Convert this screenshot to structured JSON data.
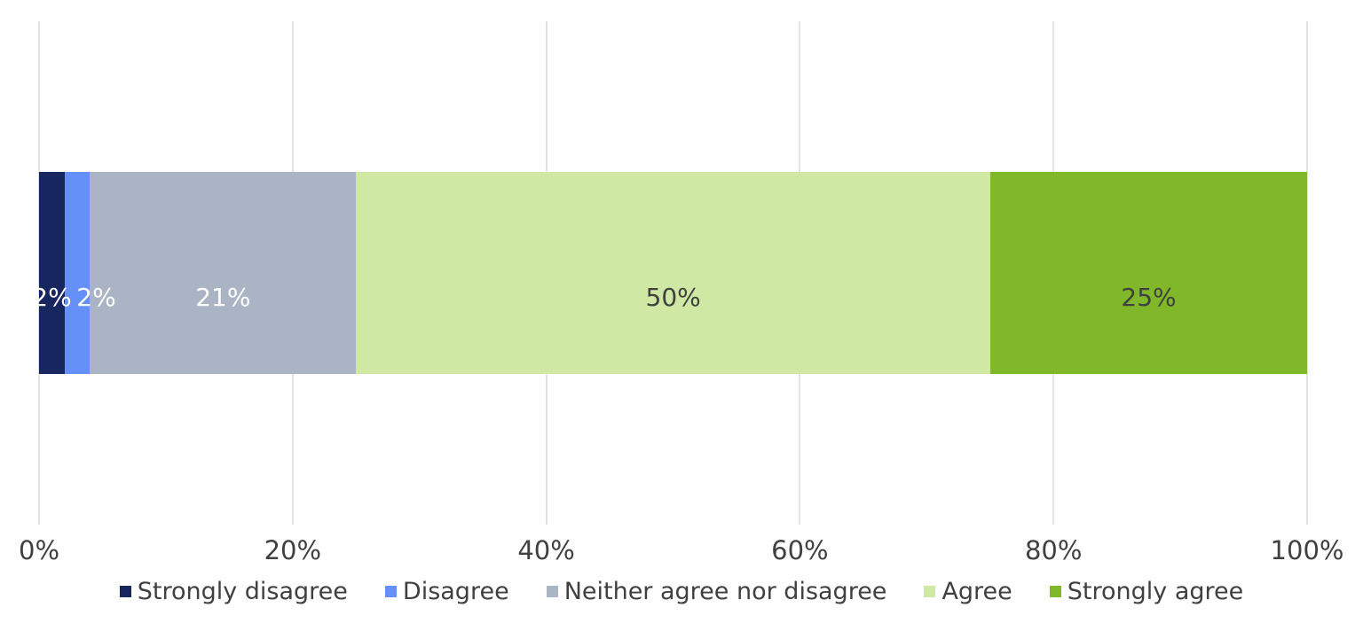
{
  "chart_data": {
    "type": "bar",
    "orientation": "horizontal",
    "stacked": true,
    "title": "",
    "series": [
      {
        "name": "Strongly disagree",
        "value": 2,
        "label": "2%",
        "color": "#17265e",
        "label_color": "#ffffff"
      },
      {
        "name": "Disagree",
        "value": 2,
        "label": "2%",
        "color": "#6590f7",
        "label_color": "#ffffff"
      },
      {
        "name": "Neither agree nor disagree",
        "value": 21,
        "label": "21%",
        "color": "#aab4c5",
        "label_color": "#ffffff"
      },
      {
        "name": "Agree",
        "value": 50,
        "label": "50%",
        "color": "#cfe8a3",
        "label_color": "#404040"
      },
      {
        "name": "Strongly agree",
        "value": 25,
        "label": "25%",
        "color": "#80b829",
        "label_color": "#404040"
      }
    ],
    "x_axis": {
      "min": 0,
      "max": 100,
      "tick_labels": [
        "0%",
        "20%",
        "40%",
        "60%",
        "80%",
        "100%"
      ],
      "grid": true
    },
    "legend": {
      "position": "bottom"
    }
  },
  "colors": {
    "background": "#ffffff",
    "gridline": "#e2e2e2",
    "tick_text": "#404040",
    "legend_text": "#404040"
  }
}
